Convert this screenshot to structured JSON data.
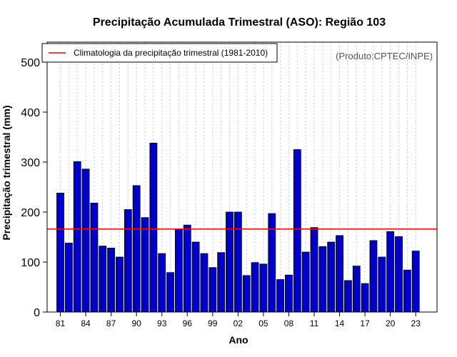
{
  "chart_data": {
    "type": "bar",
    "title": "Precipitação Acumulada Trimestral (ASO): Região 103",
    "xlabel": "Ano",
    "ylabel": "Precipitação trimestral (mm)",
    "source": "(Produto:CPTEC/INPE)",
    "legend": {
      "label": "Climatologia da precipitação trimestral (1981-2010)",
      "position": "top-left"
    },
    "categories": [
      "1981",
      "1982",
      "1983",
      "1984",
      "1985",
      "1986",
      "1987",
      "1988",
      "1989",
      "1990",
      "1991",
      "1992",
      "1993",
      "1994",
      "1995",
      "1996",
      "1997",
      "1998",
      "1999",
      "2000",
      "2001",
      "2002",
      "2003",
      "2004",
      "2005",
      "2006",
      "2007",
      "2008",
      "2009",
      "2010",
      "2011",
      "2012",
      "2013",
      "2014",
      "2015",
      "2016",
      "2017",
      "2018",
      "2019",
      "2020",
      "2021",
      "2022",
      "2023"
    ],
    "values": [
      238,
      138,
      301,
      286,
      218,
      132,
      128,
      110,
      205,
      253,
      189,
      338,
      117,
      79,
      166,
      174,
      140,
      117,
      89,
      119,
      200,
      200,
      73,
      99,
      96,
      197,
      65,
      74,
      325,
      120,
      169,
      131,
      140,
      153,
      63,
      92,
      57,
      143,
      110,
      161,
      151,
      84,
      122
    ],
    "climatology": 166,
    "xticks": [
      "81",
      "84",
      "87",
      "90",
      "93",
      "96",
      "99",
      "02",
      "05",
      "08",
      "11",
      "14",
      "17",
      "20",
      "23"
    ],
    "yticks": [
      0,
      100,
      200,
      300,
      400,
      500
    ],
    "ylim": [
      0,
      540
    ],
    "grid": "vertical dotted",
    "colors": {
      "bar_fill": "#0000CC",
      "bar_stroke": "#000000",
      "climatology_line": "#FF0000",
      "grid": "#C8C8C8"
    }
  }
}
